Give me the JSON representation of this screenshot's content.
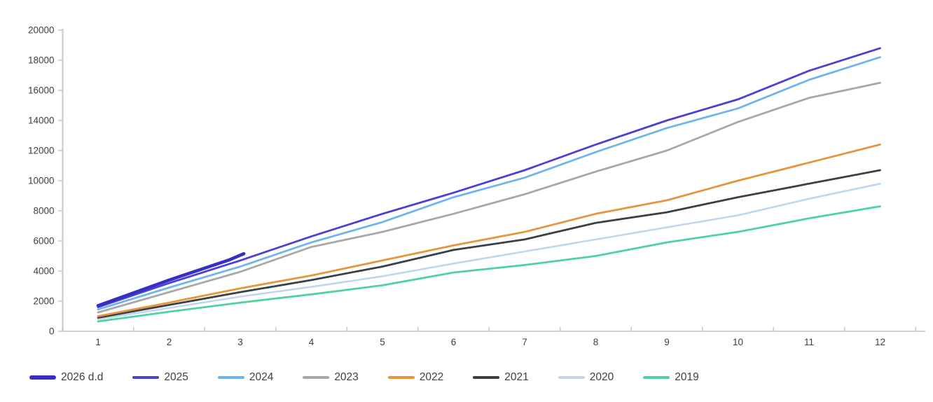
{
  "chart_data": {
    "type": "line",
    "title": "",
    "xlabel": "",
    "ylabel": "",
    "x": [
      1,
      2,
      3,
      4,
      5,
      6,
      7,
      8,
      9,
      10,
      11,
      12
    ],
    "xtick_labels": [
      "1",
      "2",
      "3",
      "4",
      "5",
      "6",
      "7",
      "8",
      "9",
      "10",
      "11",
      "12"
    ],
    "ylim": [
      0,
      20000
    ],
    "ytick_step": 2000,
    "ytick_labels": [
      "0",
      "2000",
      "4000",
      "6000",
      "8000",
      "10000",
      "12000",
      "14000",
      "16000",
      "18000",
      "20000"
    ],
    "grid": false,
    "legend_position": "bottom",
    "axis_color": "#d2d2d2",
    "tick_color": "#c2c2c2",
    "label_color": "#3f3f3f",
    "series": [
      {
        "name": "2026 d.d",
        "color": "#372ec4",
        "stroke_width": 4.6,
        "swatch_height": 5.5,
        "x": [
          1,
          2,
          2.85,
          3.05
        ],
        "values": [
          1700,
          3400,
          4750,
          5150
        ]
      },
      {
        "name": "2025",
        "color": "#4b40d4",
        "stroke_width": 2.8,
        "swatch_height": 3.5,
        "values": [
          1600,
          3200,
          4700,
          6300,
          7800,
          9200,
          10700,
          12400,
          14000,
          15400,
          17300,
          18800
        ]
      },
      {
        "name": "2024",
        "color": "#6fb5e9",
        "stroke_width": 2.8,
        "swatch_height": 3.5,
        "values": [
          1450,
          2900,
          4300,
          5900,
          7250,
          8900,
          10200,
          11900,
          13500,
          14800,
          16700,
          18200
        ]
      },
      {
        "name": "2023",
        "color": "#a8a8a8",
        "stroke_width": 2.8,
        "swatch_height": 3.5,
        "values": [
          1250,
          2600,
          3950,
          5600,
          6600,
          7800,
          9100,
          10600,
          12000,
          13900,
          15500,
          16500
        ]
      },
      {
        "name": "2022",
        "color": "#e6953c",
        "stroke_width": 2.8,
        "swatch_height": 3.5,
        "values": [
          1000,
          1900,
          2850,
          3700,
          4700,
          5700,
          6600,
          7800,
          8700,
          10000,
          11200,
          12400
        ]
      },
      {
        "name": "2021",
        "color": "#3a4048",
        "stroke_width": 2.8,
        "swatch_height": 3.5,
        "values": [
          900,
          1750,
          2600,
          3400,
          4300,
          5400,
          6100,
          7200,
          7900,
          8900,
          9800,
          10700
        ]
      },
      {
        "name": "2020",
        "color": "#bed7ef",
        "stroke_width": 2.6,
        "swatch_height": 3.5,
        "values": [
          800,
          1550,
          2300,
          2950,
          3650,
          4500,
          5300,
          6100,
          6900,
          7700,
          8800,
          9800
        ]
      },
      {
        "name": "2019",
        "color": "#4dd2a0",
        "stroke_width": 2.8,
        "swatch_height": 3.5,
        "values": [
          650,
          1300,
          1900,
          2450,
          3050,
          3900,
          4400,
          5000,
          5900,
          6600,
          7500,
          8300
        ]
      }
    ]
  }
}
